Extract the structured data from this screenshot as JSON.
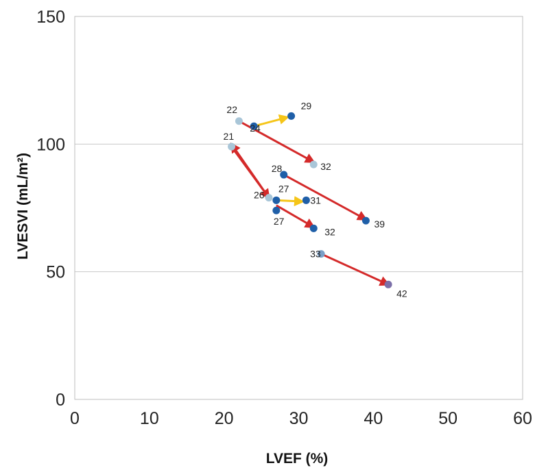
{
  "chart_data": {
    "type": "scatter",
    "title": "",
    "xlabel": "LVEF (%)",
    "ylabel": "LVESVI (mL/m²)",
    "xlim": [
      0,
      60
    ],
    "ylim": [
      0,
      150
    ],
    "xticks": [
      "0",
      "10",
      "20",
      "30",
      "40",
      "50",
      "60"
    ],
    "yticks": [
      "0",
      "50",
      "100",
      "150"
    ],
    "grid": "horizontal",
    "colors": {
      "red": "#d42a2a",
      "yellow": "#f5c518",
      "dot_dark": "#1f5fa8",
      "dot_light": "#a9c6d8",
      "dot_purple": "#7b6fa8",
      "grid": "#c8c8c8",
      "frame": "#bdbdbd"
    },
    "points": [
      {
        "x": 22,
        "y": 109,
        "label": "22",
        "color": "#a9c6d8"
      },
      {
        "x": 24,
        "y": 107,
        "label": "24",
        "color": "#1f5fa8"
      },
      {
        "x": 29,
        "y": 111,
        "label": "29",
        "color": "#1f5fa8"
      },
      {
        "x": 21,
        "y": 99,
        "label": "21",
        "color": "#a9c6d8"
      },
      {
        "x": 32,
        "y": 92,
        "label": "32",
        "color": "#a9c6d8"
      },
      {
        "x": 28,
        "y": 88,
        "label": "28",
        "color": "#1f5fa8"
      },
      {
        "x": 39,
        "y": 70,
        "label": "39",
        "color": "#1f5fa8"
      },
      {
        "x": 26,
        "y": 79,
        "label": "26",
        "color": "#a9c6d8"
      },
      {
        "x": 27,
        "y": 78,
        "label": "27",
        "color": "#1f5fa8"
      },
      {
        "x": 31,
        "y": 78,
        "label": "31",
        "color": "#1f5fa8"
      },
      {
        "x": 27,
        "y": 74,
        "label": "27",
        "color": "#1f5fa8"
      },
      {
        "x": 32,
        "y": 67,
        "label": "32",
        "color": "#1f5fa8"
      },
      {
        "x": 33,
        "y": 57,
        "label": "33",
        "color": "#7ba0c8"
      },
      {
        "x": 42,
        "y": 45,
        "label": "42",
        "color": "#7b6fa8"
      }
    ],
    "arrows": [
      {
        "from": [
          22,
          109
        ],
        "to": [
          32,
          93
        ],
        "color": "#d42a2a"
      },
      {
        "from": [
          24,
          107
        ],
        "to": [
          28.5,
          110.5
        ],
        "color": "#f5c518"
      },
      {
        "from": [
          26,
          79
        ],
        "to": [
          21,
          100
        ],
        "color": "#d42a2a"
      },
      {
        "from": [
          21,
          99
        ],
        "to": [
          26,
          79
        ],
        "color": "#d42a2a"
      },
      {
        "from": [
          28,
          88
        ],
        "to": [
          39,
          70.5
        ],
        "color": "#d42a2a"
      },
      {
        "from": [
          27,
          78
        ],
        "to": [
          30.5,
          77.5
        ],
        "color": "#f5c518"
      },
      {
        "from": [
          27,
          76
        ],
        "to": [
          32,
          67.5
        ],
        "color": "#d42a2a"
      },
      {
        "from": [
          33,
          57
        ],
        "to": [
          42,
          45
        ],
        "color": "#d42a2a"
      }
    ]
  }
}
